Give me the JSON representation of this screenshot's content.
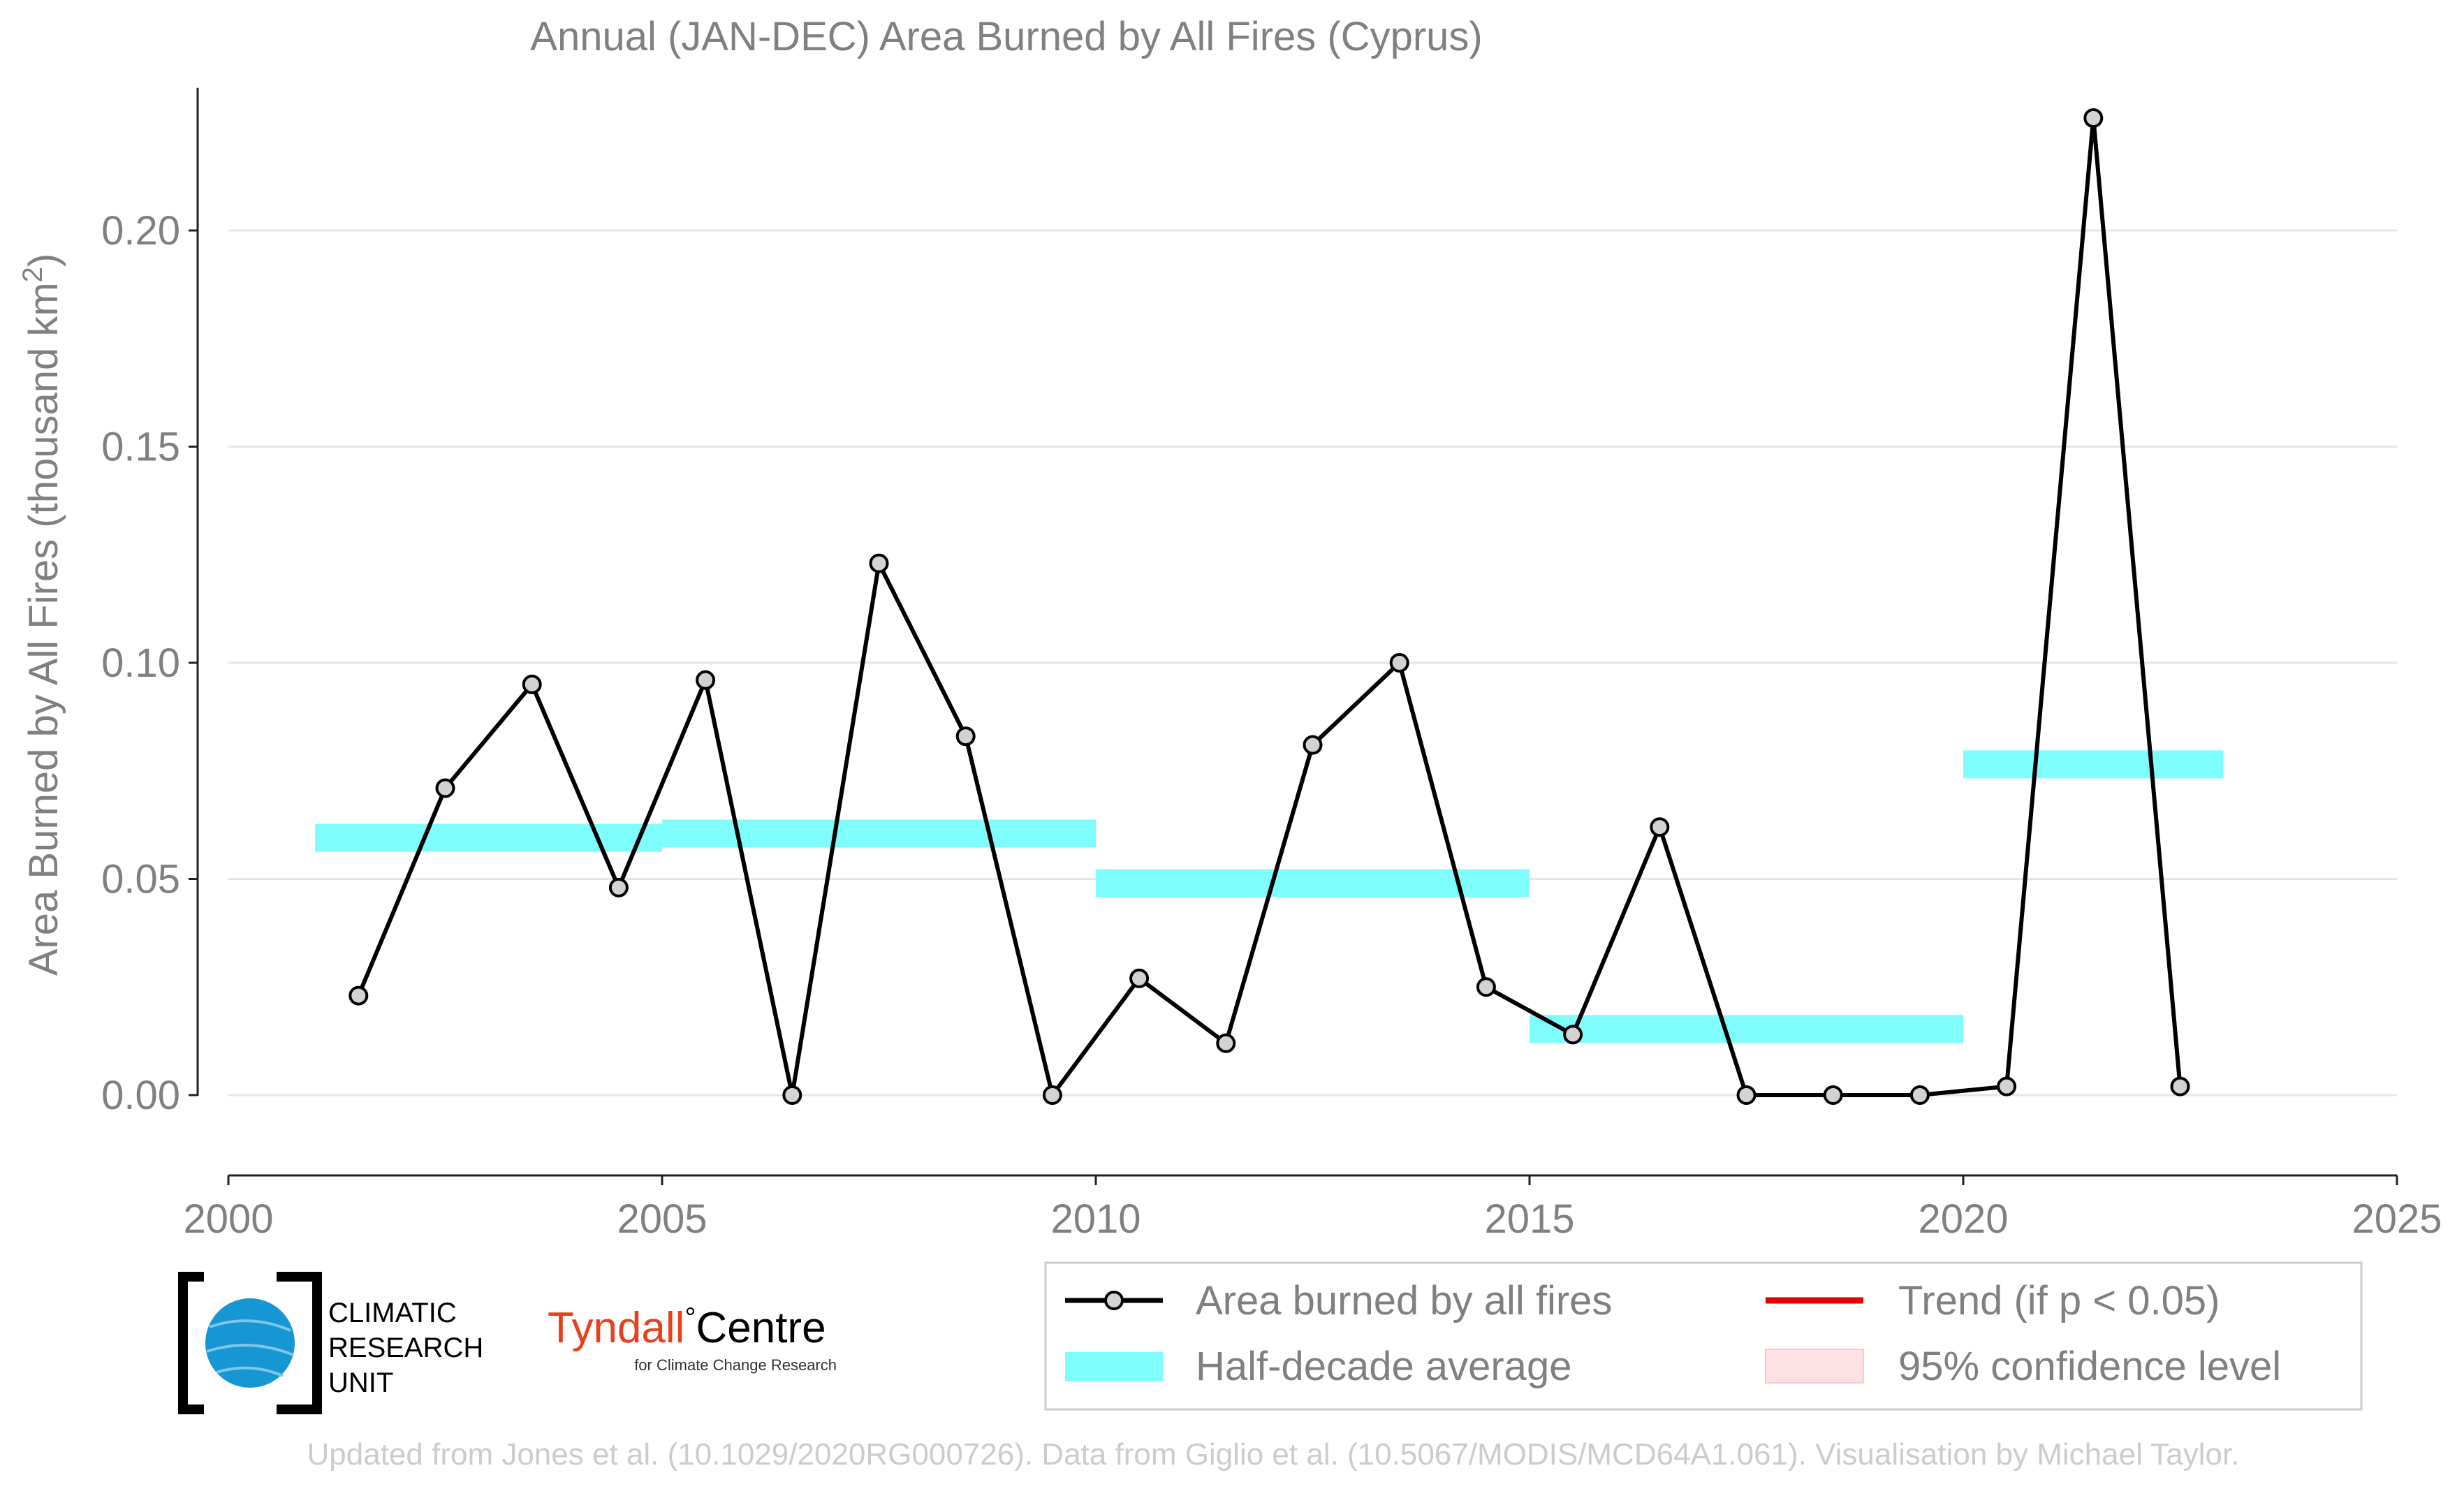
{
  "chart_data": {
    "type": "line",
    "title": "Annual (JAN-DEC) Area Burned by All Fires (Cyprus)",
    "ylabel_main": "Area Burned by All Fires (thousand km",
    "ylabel_sup": "2",
    "ylabel_close": ")",
    "xlabel": "",
    "xlim": [
      2000,
      2025
    ],
    "ylim": [
      -0.0135,
      0.235
    ],
    "x_ticks": [
      2000,
      2005,
      2010,
      2015,
      2020,
      2025
    ],
    "y_ticks": [
      0.0,
      0.05,
      0.1,
      0.15,
      0.2
    ],
    "y_tick_labels": [
      "0.00",
      "0.05",
      "0.10",
      "0.15",
      "0.20"
    ],
    "grid": "horizontal",
    "series": [
      {
        "name": "Area burned by all fires",
        "color": "#000000",
        "marker_fill": "#d3d3d3",
        "x": [
          2001.5,
          2002.5,
          2003.5,
          2004.5,
          2005.5,
          2006.5,
          2007.5,
          2008.5,
          2009.5,
          2010.5,
          2011.5,
          2012.5,
          2013.5,
          2014.5,
          2015.5,
          2016.5,
          2017.5,
          2018.5,
          2019.5,
          2020.5,
          2021.5,
          2022.5
        ],
        "y": [
          0.023,
          0.071,
          0.095,
          0.048,
          0.096,
          0.0,
          0.123,
          0.083,
          0.0,
          0.027,
          0.012,
          0.081,
          0.1,
          0.025,
          0.014,
          0.062,
          0.0,
          0.0,
          0.0,
          0.002,
          0.226,
          0.002
        ]
      }
    ],
    "half_decade_average": {
      "name": "Half-decade average",
      "color": "#7ffcfc",
      "segments": [
        {
          "x0": 2001,
          "x1": 2005,
          "y": 0.0595
        },
        {
          "x0": 2005,
          "x1": 2010,
          "y": 0.0605
        },
        {
          "x0": 2010,
          "x1": 2015,
          "y": 0.049
        },
        {
          "x0": 2015,
          "x1": 2020,
          "y": 0.0153
        },
        {
          "x0": 2020,
          "x1": 2023,
          "y": 0.0765
        }
      ]
    },
    "legend": {
      "placement": "bottom-right",
      "items": [
        {
          "label": "Area burned by all fires",
          "kind": "line-marker",
          "color": "#000000"
        },
        {
          "label": "Half-decade average",
          "kind": "band",
          "color": "#7ffcfc"
        },
        {
          "label": "Trend (if p < 0.05)",
          "kind": "line",
          "color": "#e00000"
        },
        {
          "label": "95% confidence level",
          "kind": "patch",
          "color": "#ffe0e4"
        }
      ]
    }
  },
  "logos": {
    "cru_line1": "CLIMATIC",
    "cru_line2": "RESEARCH",
    "cru_line3": "UNIT",
    "tyndall_red": "Tyndall",
    "tyndall_degree": "°",
    "tyndall_rest": "Centre",
    "tyndall_sub": "for Climate Change Research"
  },
  "footer": "Updated from Jones et al. (10.1029/2020RG000726). Data from Giglio et al. (10.5067/MODIS/MCD64A1.061). Visualisation by Michael Taylor.",
  "colors": {
    "text_gray": "#808080",
    "footer_gray": "#cccccc",
    "grid": "#e6e6e6",
    "axis": "#222222",
    "tyndall_red": "#e8401c",
    "cru_blue": "#1696d2"
  }
}
